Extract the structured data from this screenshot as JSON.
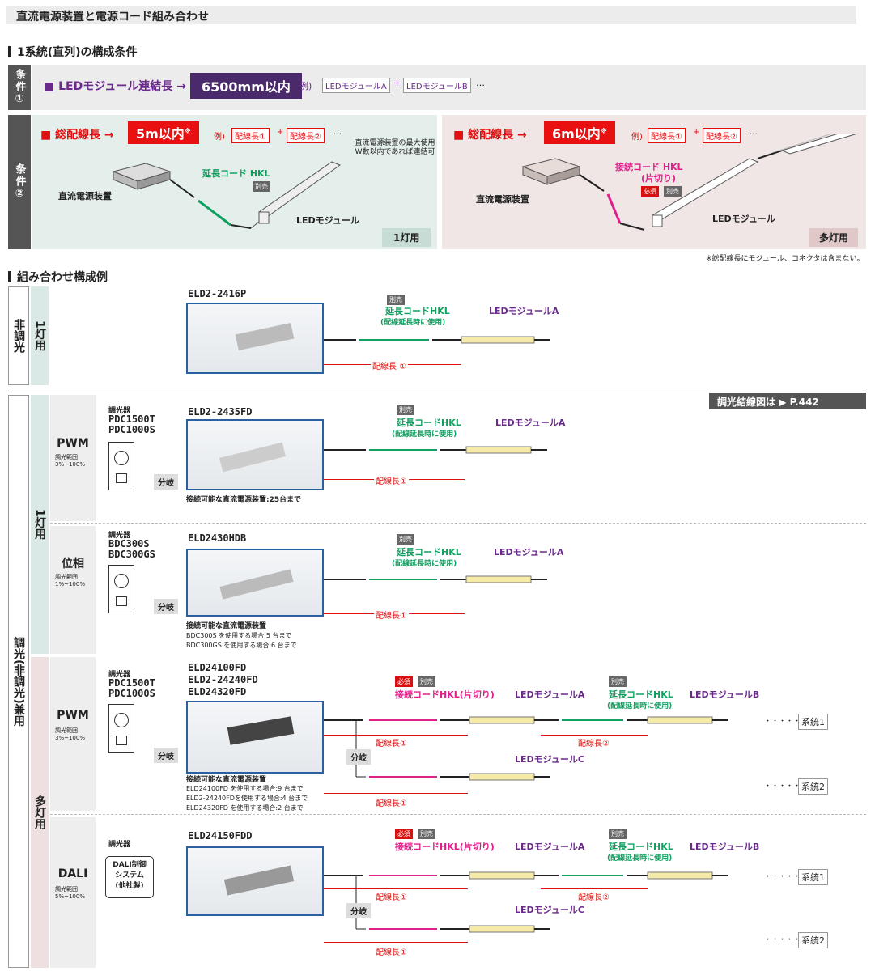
{
  "title": "直流電源装置と電源コード組み合わせ",
  "sec1": "1系統(直列)の構成条件",
  "cond1": {
    "tag": "条件①",
    "label": "■ LEDモジュール連結長 →",
    "value": "6500mm以内",
    "example": "例)",
    "mod_a": "LEDモジュールA",
    "mod_b": "LEDモジュールB",
    "dots": "…"
  },
  "cond2": {
    "tag": "条件②",
    "single": {
      "label": "■ 総配線長 →",
      "value": "5m以内",
      "note_mark": "※",
      "example": "例)",
      "wire1": "配線長①",
      "wire2": "配線長②",
      "dots": "…",
      "ps": "直流電源装置",
      "cord": "延長コード HKL",
      "separate": "別売",
      "module": "LEDモジュール",
      "note": "直流電源装置の最大使用W数以内であれば連結可",
      "use": "1灯用"
    },
    "multi": {
      "label": "■ 総配線長 →",
      "value": "6m以内",
      "note_mark": "※",
      "example": "例)",
      "wire1": "配線長①",
      "wire2": "配線長②",
      "dots": "…",
      "ps": "直流電源装置",
      "cord": "接続コード HKL",
      "cord2": "(片切り)",
      "required": "必須",
      "separate": "別売",
      "module": "LEDモジュール",
      "use": "多灯用"
    },
    "footnote": "※総配線長にモジュール、コネクタは含まない。"
  },
  "sec2": "組み合わせ構成例",
  "cat": {
    "nondim": "非調光",
    "single": "1灯用",
    "dim": "調光(非調光)兼用",
    "multi": "多灯用"
  },
  "ref": "調光結線図は ▶ P.442",
  "r1": {
    "model": "ELD2-2416P",
    "separate": "別売",
    "cord": "延長コードHKL",
    "cord_note": "(配線延長時に使用)",
    "module": "LEDモジュールA",
    "wire": "配線長 ①"
  },
  "r2": {
    "dimtype": "PWM",
    "range_label": "調光範囲",
    "range": "3%~100%",
    "dimmer_label": "調光器",
    "dimmer_models": "PDC1500T\nPDC1000S",
    "model": "ELD2-2435FD",
    "separate": "別売",
    "cord": "延長コードHKL",
    "cord_note": "(配線延長時に使用)",
    "module": "LEDモジュールA",
    "wire": "配線長①",
    "branch": "分岐",
    "connect": "接続可能な直流電源装置:25台まで"
  },
  "r3": {
    "dimtype": "位相",
    "range_label": "調光範囲",
    "range": "1%~100%",
    "dimmer_label": "調光器",
    "dimmer_models": "BDC300S\nBDC300GS",
    "model": "ELD2430HDB",
    "separate": "別売",
    "cord": "延長コードHKL",
    "cord_note": "(配線延長時に使用)",
    "module": "LEDモジュールA",
    "wire": "配線長①",
    "branch": "分岐",
    "connect": "接続可能な直流電源装置",
    "c1": "BDC300S を使用する場合:5 台まで",
    "c2": "BDC300GS を使用する場合:6 台まで"
  },
  "r4": {
    "dimtype": "PWM",
    "range_label": "調光範囲",
    "range": "3%~100%",
    "dimmer_label": "調光器",
    "dimmer_models": "PDC1500T\nPDC1000S",
    "model": "ELD24100FD\nELD2-24240FD\nELD24320FD",
    "required": "必須",
    "separate": "別売",
    "cord": "接続コードHKL(片切り)",
    "ext": "延長コードHKL",
    "ext_note": "(配線延長時に使用)",
    "mod_a": "LEDモジュールA",
    "mod_b": "LEDモジュールB",
    "mod_c": "LEDモジュールC",
    "wire1": "配線長①",
    "wire2": "配線長②",
    "branch": "分岐",
    "dots": "・・・・・",
    "sys1": "系統1",
    "sys2": "系統2",
    "connect": "接続可能な直流電源装置",
    "c1": "ELD24100FD を使用する場合:9 台まで",
    "c2": "ELD2-24240FDを使用する場合:4 台まで",
    "c3": "ELD24320FD を使用する場合:2 台まで"
  },
  "r5": {
    "dimtype": "DALI",
    "range_label": "調光範囲",
    "range": "5%~100%",
    "dimmer_label": "調光器",
    "dali": "DALI制御\nシステム\n(他社製)",
    "model": "ELD24150FDD",
    "required": "必須",
    "separate": "別売",
    "cord": "接続コードHKL(片切り)",
    "ext": "延長コードHKL",
    "ext_note": "(配線延長時に使用)",
    "mod_a": "LEDモジュールA",
    "mod_b": "LEDモジュールB",
    "mod_c": "LEDモジュールC",
    "wire1": "配線長①",
    "wire2": "配線長②",
    "branch": "分岐",
    "dots": "・・・・・",
    "sys1": "系統1",
    "sys2": "系統2"
  }
}
